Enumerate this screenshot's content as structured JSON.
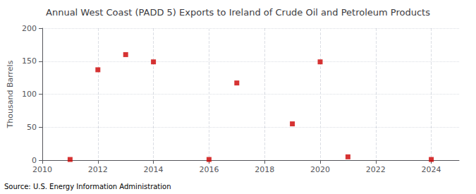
{
  "chart_data": {
    "type": "scatter",
    "title": "Annual West Coast (PADD 5) Exports to Ireland of Crude Oil and Petroleum Products",
    "ylabel": "Thousand Barrels",
    "source": "Source: U.S. Energy Information Administration",
    "x": [
      2011,
      2012,
      2013,
      2014,
      2016,
      2017,
      2019,
      2020,
      2021,
      2024
    ],
    "values": [
      1,
      137,
      160,
      149,
      1,
      117,
      55,
      149,
      5,
      1
    ],
    "color": "#cc0000",
    "marker": "square",
    "xlim": [
      2010,
      2025
    ],
    "xticks": [
      2010,
      2012,
      2014,
      2016,
      2018,
      2020,
      2022,
      2024
    ],
    "ylim": [
      0,
      200
    ],
    "yticks": [
      0,
      50,
      100,
      150,
      200
    ],
    "grid": true
  }
}
